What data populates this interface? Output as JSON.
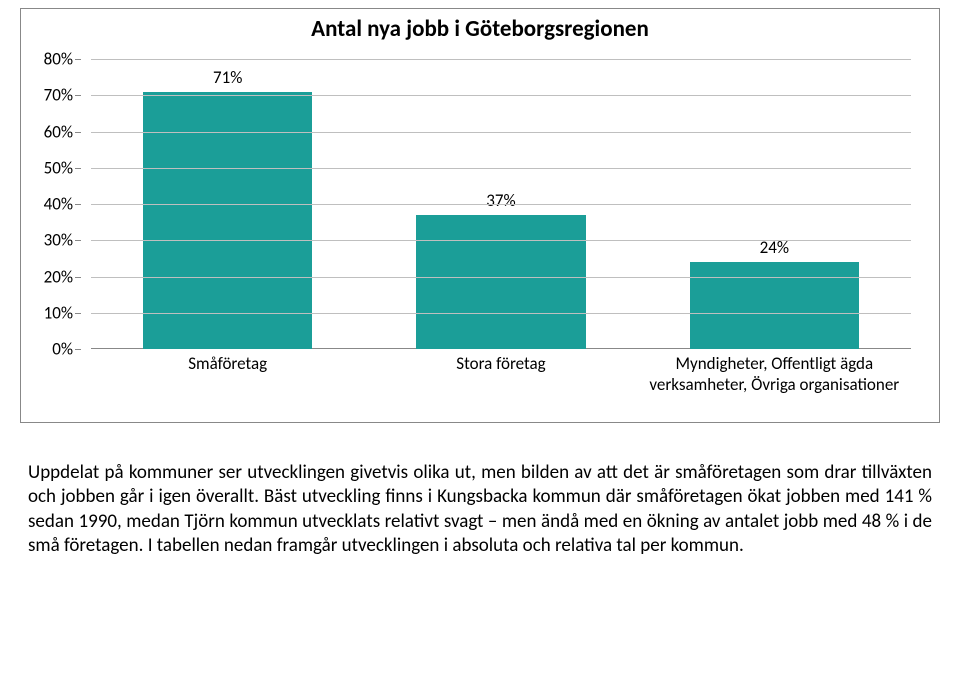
{
  "chart": {
    "type": "bar",
    "title": "Antal nya jobb i Göteborgsregionen",
    "title_fontsize": 23,
    "title_weight": 700,
    "categories": [
      "Småföretag",
      "Stora företag",
      "Myndigheter, Offentligt ägda verksamheter, Övriga organisationer"
    ],
    "values": [
      71,
      37,
      24
    ],
    "value_labels": [
      "71%",
      "37%",
      "24%"
    ],
    "bar_color": "#1b9e98",
    "grid_color": "#bfbfbf",
    "axis_color": "#888888",
    "background_color": "#ffffff",
    "ylim": [
      0,
      80
    ],
    "ytick_step": 10,
    "ytick_labels": [
      "0%",
      "10%",
      "20%",
      "30%",
      "40%",
      "50%",
      "60%",
      "70%",
      "80%"
    ],
    "tick_fontsize": 17,
    "label_fontsize": 17,
    "bar_width": 0.62
  },
  "paragraph": {
    "text": "Uppdelat på kommuner ser utvecklingen givetvis olika ut, men bilden av att det är småföretagen som drar tillväxten och jobben går i igen överallt. Bäst utveckling finns i Kungsbacka kommun där småföretagen ökat jobben med 141 % sedan 1990, medan Tjörn kommun utvecklats relativt svagt – men ändå med en ökning av antalet jobb med 48 % i de små företagen. I tabellen nedan framgår utvecklingen i absoluta och relativa tal per kommun.",
    "fontsize": 19,
    "align": "justify"
  }
}
